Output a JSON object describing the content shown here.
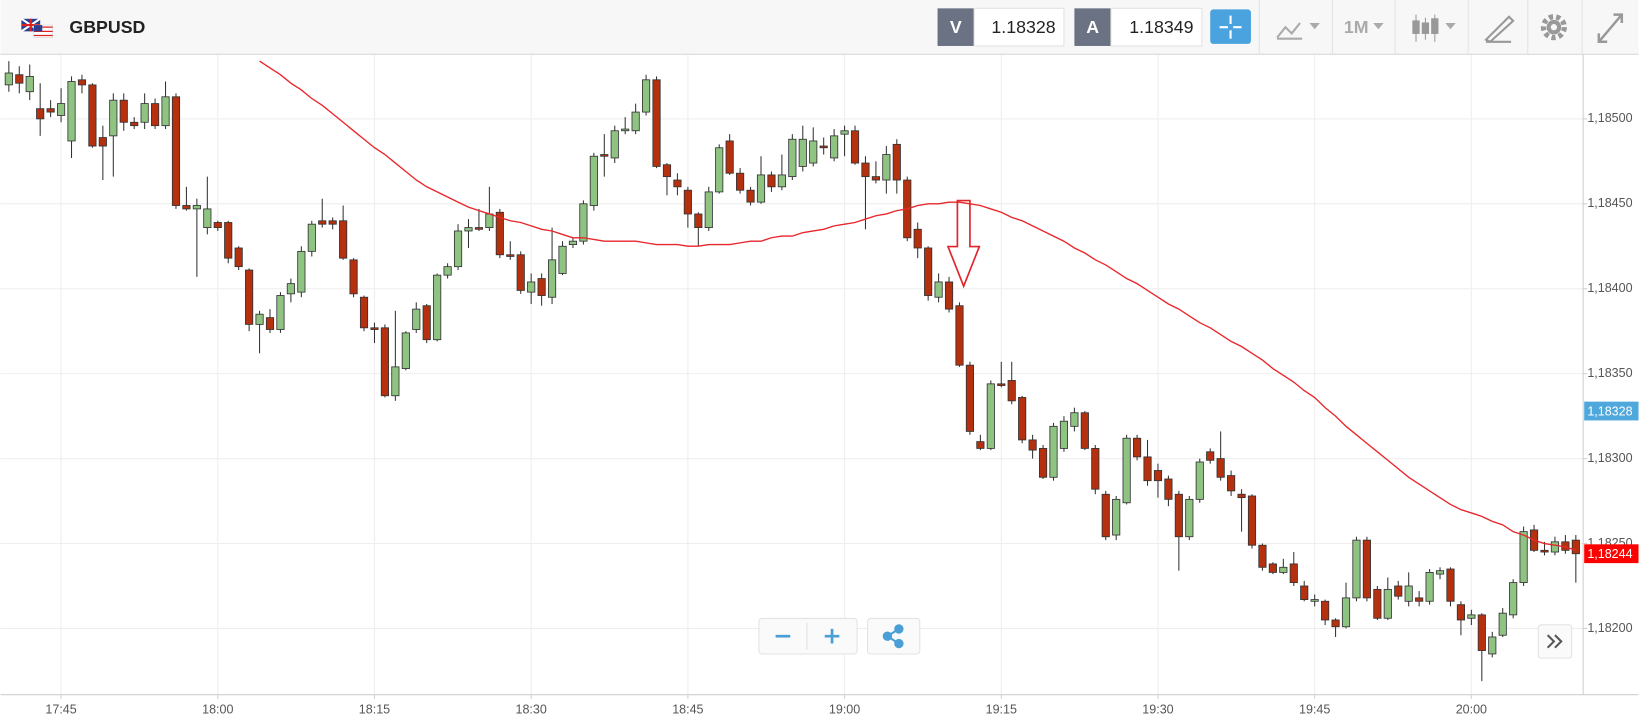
{
  "toolbar": {
    "symbol": "GBPUSD",
    "sell_label": "V",
    "sell_price": 1.18328,
    "buy_label": "A",
    "buy_price": 1.18349,
    "timeframe": "1M"
  },
  "chart_data": {
    "type": "candlestick",
    "categories": [
      null,
      null,
      null,
      null,
      null,
      "17:45",
      null,
      null,
      null,
      null,
      null,
      null,
      null,
      null,
      null,
      null,
      null,
      null,
      null,
      null,
      "18:00",
      null,
      null,
      null,
      null,
      null,
      null,
      null,
      null,
      null,
      null,
      null,
      null,
      null,
      null,
      "18:15",
      null,
      null,
      null,
      null,
      null,
      null,
      null,
      null,
      null,
      null,
      null,
      null,
      null,
      null,
      "18:30",
      null,
      null,
      null,
      null,
      null,
      null,
      null,
      null,
      null,
      null,
      null,
      null,
      null,
      null,
      "18:45",
      null,
      null,
      null,
      null,
      null,
      null,
      null,
      null,
      null,
      null,
      null,
      null,
      null,
      null,
      "19:00",
      null,
      null,
      null,
      null,
      null,
      null,
      null,
      null,
      null,
      null,
      null,
      null,
      null,
      null,
      "19:15",
      null,
      null,
      null,
      null,
      null,
      null,
      null,
      null,
      null,
      null,
      null,
      null,
      null,
      null,
      "19:30",
      null,
      null,
      null,
      null,
      null,
      null,
      null,
      null,
      null,
      null,
      null,
      null,
      null,
      null,
      "19:45",
      null,
      null,
      null,
      null,
      null,
      null,
      null,
      null,
      null,
      null,
      null,
      null,
      null,
      null,
      "20:00",
      null,
      null,
      null,
      null,
      null,
      null,
      null,
      null,
      null,
      null
    ],
    "open": [
      1.1852,
      1.18526,
      1.18516,
      1.18506,
      1.18506,
      1.18502,
      1.18487,
      1.18523,
      1.1852,
      1.18489,
      1.1849,
      1.18511,
      1.18498,
      1.18498,
      1.18509,
      1.18496,
      1.18513,
      1.18449,
      1.18447,
      1.18436,
      1.18439,
      1.18439,
      1.18424,
      1.18411,
      1.18379,
      1.18383,
      1.18376,
      1.18397,
      1.18398,
      1.18422,
      1.1844,
      1.1844,
      1.1844,
      1.18417,
      1.18395,
      1.18377,
      1.18377,
      1.18337,
      1.18353,
      1.18376,
      1.1839,
      1.1837,
      1.18408,
      1.18413,
      1.18434,
      1.18436,
      1.18436,
      1.18445,
      1.1842,
      1.1842,
      1.18398,
      1.18406,
      1.18395,
      1.18409,
      1.18426,
      1.18428,
      1.18449,
      1.18479,
      1.18477,
      1.18493,
      1.18493,
      1.18504,
      1.18523,
      1.18473,
      1.18464,
      1.18458,
      1.18444,
      1.18436,
      1.18457,
      1.18487,
      1.18468,
      1.18458,
      1.18451,
      1.18467,
      1.1846,
      1.18466,
      1.18472,
      1.18474,
      1.18484,
      1.18477,
      1.18491,
      1.18493,
      1.18474,
      1.18466,
      1.18464,
      1.18485,
      1.18464,
      1.18435,
      1.18424,
      1.18395,
      1.18404,
      1.1839,
      1.18355,
      1.1831,
      1.18306,
      1.18344,
      1.18346,
      1.18336,
      1.18311,
      1.18306,
      1.18289,
      1.18306,
      1.18319,
      1.18327,
      1.18306,
      1.18279,
      1.18255,
      1.18274,
      1.18312,
      1.18301,
      1.18293,
      1.18288,
      1.18279,
      1.18254,
      1.18276,
      1.18304,
      1.183,
      1.1829,
      1.18279,
      1.18278,
      1.18249,
      1.18238,
      1.18233,
      1.18238,
      1.18225,
      1.18216,
      1.18216,
      1.18205,
      1.18201,
      1.18218,
      1.18252,
      1.18223,
      1.18206,
      1.18225,
      1.18216,
      1.18218,
      1.18216,
      1.18232,
      1.18235,
      1.18214,
      1.18206,
      1.18208,
      1.18185,
      1.18196,
      1.18208,
      1.18227,
      1.18258,
      1.18246,
      1.18245,
      1.18251,
      1.18252
    ],
    "high": [
      1.18534,
      1.18531,
      1.18532,
      1.18521,
      1.18511,
      1.18518,
      1.18525,
      1.18526,
      1.18521,
      1.18496,
      1.18515,
      1.18515,
      1.18501,
      1.18515,
      1.18512,
      1.18522,
      1.18515,
      1.1846,
      1.18453,
      1.18466,
      1.1844,
      1.1844,
      1.18425,
      1.18412,
      1.18387,
      1.18388,
      1.18398,
      1.18406,
      1.18425,
      1.1844,
      1.18453,
      1.18442,
      1.18449,
      1.18418,
      1.18396,
      1.1838,
      1.18379,
      1.18387,
      1.18375,
      1.18392,
      1.18391,
      1.18409,
      1.18415,
      1.18438,
      1.18441,
      1.18447,
      1.1846,
      1.18447,
      1.18428,
      1.18422,
      1.18409,
      1.18409,
      1.18436,
      1.18428,
      1.1843,
      1.18452,
      1.1848,
      1.18491,
      1.18496,
      1.18501,
      1.18509,
      1.18526,
      1.18525,
      1.18474,
      1.18468,
      1.1846,
      1.18445,
      1.1846,
      1.18485,
      1.18491,
      1.18471,
      1.1846,
      1.18478,
      1.18469,
      1.18479,
      1.18491,
      1.18496,
      1.18495,
      1.18489,
      1.18494,
      1.18496,
      1.18496,
      1.18478,
      1.18475,
      1.18484,
      1.18488,
      1.18466,
      1.18439,
      1.18425,
      1.18409,
      1.18407,
      1.18392,
      1.18357,
      1.18314,
      1.18346,
      1.18357,
      1.18357,
      1.18337,
      1.18314,
      1.18308,
      1.18321,
      1.18325,
      1.1833,
      1.18328,
      1.18308,
      1.18281,
      1.18278,
      1.18314,
      1.18314,
      1.18311,
      1.18297,
      1.1829,
      1.18281,
      1.18278,
      1.183,
      1.18306,
      1.18316,
      1.18293,
      1.18282,
      1.18279,
      1.1825,
      1.18239,
      1.18241,
      1.18245,
      1.18228,
      1.1822,
      1.18217,
      1.18206,
      1.18227,
      1.18254,
      1.18254,
      1.18225,
      1.1823,
      1.18228,
      1.18233,
      1.18222,
      1.18235,
      1.18236,
      1.18236,
      1.18216,
      1.18211,
      1.18209,
      1.18198,
      1.18212,
      1.18229,
      1.1826,
      1.18261,
      1.18251,
      1.18254,
      1.18255,
      1.18255
    ],
    "low": [
      1.18516,
      1.18515,
      1.18511,
      1.1849,
      1.18501,
      1.18498,
      1.18477,
      1.18515,
      1.18483,
      1.18464,
      1.18466,
      1.18493,
      1.18494,
      1.18494,
      1.18494,
      1.18494,
      1.18447,
      1.18446,
      1.18407,
      1.18432,
      1.18434,
      1.18415,
      1.18411,
      1.18375,
      1.18362,
      1.18374,
      1.18374,
      1.18392,
      1.18395,
      1.18419,
      1.18436,
      1.18435,
      1.18417,
      1.18395,
      1.18375,
      1.18368,
      1.18336,
      1.18334,
      1.18352,
      1.18374,
      1.18368,
      1.18369,
      1.18406,
      1.18411,
      1.18424,
      1.18434,
      1.18434,
      1.18418,
      1.18417,
      1.18397,
      1.18391,
      1.1839,
      1.18391,
      1.18408,
      1.18424,
      1.18426,
      1.18446,
      1.18466,
      1.18474,
      1.18491,
      1.18491,
      1.18502,
      1.18471,
      1.18455,
      1.18455,
      1.18436,
      1.18425,
      1.18434,
      1.18456,
      1.18467,
      1.18456,
      1.18449,
      1.1845,
      1.18457,
      1.18458,
      1.18464,
      1.18469,
      1.18472,
      1.18479,
      1.18475,
      1.18478,
      1.18473,
      1.18435,
      1.18462,
      1.18456,
      1.18456,
      1.18428,
      1.18418,
      1.18393,
      1.18392,
      1.18386,
      1.18354,
      1.18314,
      1.18305,
      1.18305,
      1.18342,
      1.18332,
      1.18309,
      1.183,
      1.18288,
      1.18287,
      1.18304,
      1.18316,
      1.18305,
      1.18279,
      1.18252,
      1.18252,
      1.18273,
      1.18299,
      1.18284,
      1.18277,
      1.18272,
      1.18234,
      1.18252,
      1.18274,
      1.18297,
      1.18287,
      1.18278,
      1.18257,
      1.18247,
      1.18234,
      1.18232,
      1.18232,
      1.18225,
      1.18216,
      1.18213,
      1.18202,
      1.18195,
      1.182,
      1.18216,
      1.18216,
      1.18205,
      1.18205,
      1.18217,
      1.18213,
      1.18213,
      1.18214,
      1.18229,
      1.18213,
      1.18196,
      1.18202,
      1.18169,
      1.18183,
      1.18195,
      1.18206,
      1.18225,
      1.18245,
      1.18243,
      1.18243,
      1.18244,
      1.18227
    ],
    "close": [
      1.18527,
      1.18521,
      1.18525,
      1.185,
      1.18504,
      1.18509,
      1.18522,
      1.1852,
      1.18484,
      1.18484,
      1.18511,
      1.18498,
      1.18496,
      1.18509,
      1.18496,
      1.18513,
      1.18449,
      1.18447,
      1.18449,
      1.18447,
      1.18436,
      1.18418,
      1.18413,
      1.18379,
      1.18385,
      1.18376,
      1.18396,
      1.18403,
      1.18422,
      1.18438,
      1.18438,
      1.18438,
      1.18418,
      1.18397,
      1.18377,
      1.18376,
      1.18337,
      1.18354,
      1.18374,
      1.18388,
      1.1837,
      1.18408,
      1.18413,
      1.18434,
      1.18436,
      1.18435,
      1.18444,
      1.1842,
      1.18419,
      1.18399,
      1.18404,
      1.18396,
      1.18417,
      1.18425,
      1.18428,
      1.1845,
      1.18478,
      1.18478,
      1.18493,
      1.18494,
      1.18504,
      1.18523,
      1.18472,
      1.18466,
      1.1846,
      1.18444,
      1.18436,
      1.18457,
      1.18483,
      1.18468,
      1.18458,
      1.18451,
      1.18467,
      1.1846,
      1.18467,
      1.18488,
      1.18488,
      1.18487,
      1.18483,
      1.1849,
      1.18493,
      1.18474,
      1.18466,
      1.18464,
      1.18479,
      1.18464,
      1.1843,
      1.18424,
      1.18396,
      1.18404,
      1.18388,
      1.18355,
      1.18316,
      1.18306,
      1.18344,
      1.18343,
      1.18334,
      1.18311,
      1.18305,
      1.18289,
      1.18319,
      1.18322,
      1.18327,
      1.18306,
      1.18282,
      1.18254,
      1.18276,
      1.18312,
      1.18301,
      1.18287,
      1.18287,
      1.18276,
      1.18254,
      1.18276,
      1.18298,
      1.18299,
      1.18289,
      1.18281,
      1.18277,
      1.18249,
      1.18236,
      1.18233,
      1.18236,
      1.18227,
      1.18217,
      1.18217,
      1.18205,
      1.18201,
      1.18218,
      1.18252,
      1.18218,
      1.18206,
      1.18223,
      1.18219,
      1.18225,
      1.18216,
      1.18233,
      1.18234,
      1.18216,
      1.18205,
      1.18208,
      1.18187,
      1.18195,
      1.18209,
      1.18227,
      1.18257,
      1.18246,
      1.18245,
      1.18251,
      1.18246,
      1.18244
    ],
    "up_color": "#8fc382",
    "down_color": "#b5300f",
    "moving_average": {
      "color": "#e8262b",
      "values": [
        null,
        null,
        null,
        null,
        null,
        null,
        null,
        null,
        null,
        null,
        null,
        null,
        null,
        null,
        null,
        null,
        null,
        null,
        null,
        null,
        null,
        null,
        null,
        null,
        1.18534,
        1.1853,
        1.18526,
        1.18521,
        1.18517,
        1.18512,
        1.18508,
        1.18503,
        1.18498,
        1.18493,
        1.18488,
        1.18483,
        1.18479,
        1.18474,
        1.18469,
        1.18464,
        1.1846,
        1.18457,
        1.18454,
        1.18451,
        1.18448,
        1.18446,
        1.18444,
        1.18442,
        1.1844,
        1.18439,
        1.18437,
        1.18435,
        1.18434,
        1.18432,
        1.1843,
        1.1843,
        1.18429,
        1.18428,
        1.18428,
        1.18428,
        1.18428,
        1.18427,
        1.18426,
        1.18426,
        1.18426,
        1.18425,
        1.18425,
        1.18426,
        1.18426,
        1.18426,
        1.18427,
        1.18428,
        1.18428,
        1.1843,
        1.18431,
        1.18431,
        1.18433,
        1.18434,
        1.18435,
        1.18437,
        1.18438,
        1.18439,
        1.18441,
        1.18443,
        1.18444,
        1.18446,
        1.18447,
        1.18449,
        1.1845,
        1.1845,
        1.18451,
        1.18451,
        1.1845,
        1.18449,
        1.18447,
        1.18445,
        1.18442,
        1.1844,
        1.18437,
        1.18434,
        1.18431,
        1.18428,
        1.18424,
        1.18421,
        1.18417,
        1.18414,
        1.1841,
        1.18406,
        1.18403,
        1.18399,
        1.18395,
        1.18391,
        1.18388,
        1.18384,
        1.1838,
        1.18377,
        1.18373,
        1.18369,
        1.18366,
        1.18362,
        1.18358,
        1.18353,
        1.18349,
        1.18345,
        1.1834,
        1.18336,
        1.1833,
        1.18325,
        1.18319,
        1.18314,
        1.18309,
        1.18304,
        1.18299,
        1.18294,
        1.18289,
        1.18285,
        1.18281,
        1.18277,
        1.18273,
        1.1827,
        1.18268,
        1.18266,
        1.18263,
        1.18261,
        1.18257,
        1.18255,
        1.18252,
        1.1825,
        1.18249,
        1.18248,
        1.18246
      ]
    },
    "ylim": [
      1.18161,
      1.18538
    ],
    "yticks": [
      {
        "value": 1.182,
        "label": "1,18200"
      },
      {
        "value": 1.1825,
        "label": "1,18250"
      },
      {
        "value": 1.183,
        "label": "1,18300"
      },
      {
        "value": 1.1835,
        "label": "1,18350"
      },
      {
        "value": 1.184,
        "label": "1,18400"
      },
      {
        "value": 1.1845,
        "label": "1,18450"
      },
      {
        "value": 1.185,
        "label": "1,18500"
      }
    ],
    "bid_line": {
      "value": 1.18328,
      "label": "1,18328",
      "color": "#4ea8dc"
    },
    "current_price": {
      "value": 1.18244,
      "label": "1,18244",
      "color": "#ff0000"
    },
    "grid": true
  }
}
